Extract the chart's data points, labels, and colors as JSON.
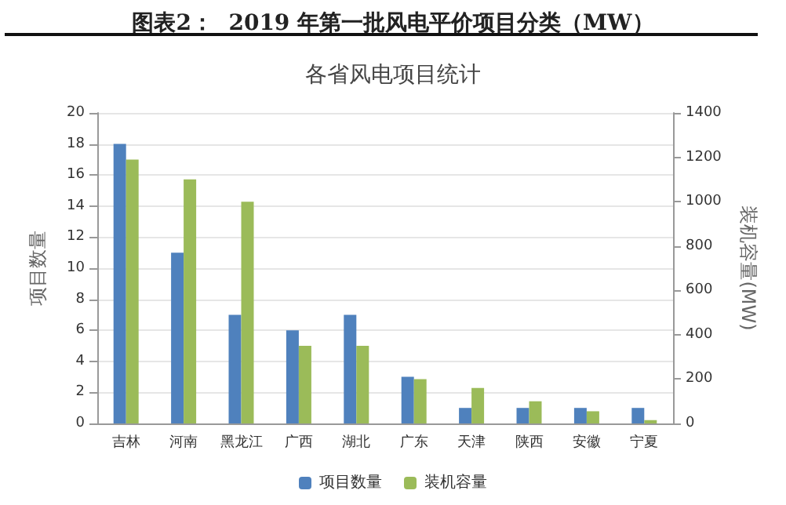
{
  "chart_data": {
    "type": "bar",
    "title": "图表2：  2019 年第一批风电平价项目分类（MW）",
    "subtitle": "各省风电项目统计",
    "categories": [
      "吉林",
      "河南",
      "黑龙江",
      "广西",
      "湖北",
      "广东",
      "天津",
      "陕西",
      "安徽",
      "宁夏"
    ],
    "series": [
      {
        "name": "项目数量",
        "color": "#4f81bd",
        "values": [
          18,
          11,
          7,
          6,
          7,
          3,
          1,
          1,
          1,
          1
        ]
      },
      {
        "name": "装机容量",
        "color": "#9bbb59",
        "axis": "y2",
        "values": [
          1190,
          1100,
          1000,
          350,
          350,
          200,
          160,
          100,
          55,
          15
        ]
      }
    ],
    "ylabel": "项目数量",
    "y2label": "装机容量(MW)",
    "ylim": [
      0,
      20
    ],
    "yticks": [
      0,
      2,
      4,
      6,
      8,
      10,
      12,
      14,
      16,
      18,
      20
    ],
    "y2lim": [
      0,
      1400
    ],
    "y2ticks": [
      0,
      200,
      400,
      600,
      800,
      1000,
      1200,
      1400
    ],
    "grid": "y",
    "legend": "bottom"
  }
}
